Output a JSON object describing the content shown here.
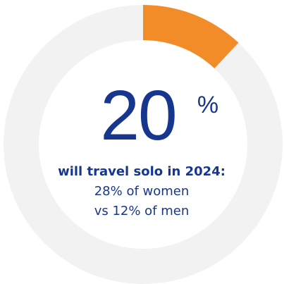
{
  "chart_data": {
    "type": "donut",
    "categories": [
      null,
      null
    ],
    "values": [
      12,
      88
    ],
    "colors": [
      "#f28c28",
      "#f2f2f2"
    ],
    "headline": {
      "value": 20,
      "unit": "%"
    },
    "lines": [
      "will travel solo in 2024:",
      "28% of women",
      "vs 12% of men"
    ]
  }
}
